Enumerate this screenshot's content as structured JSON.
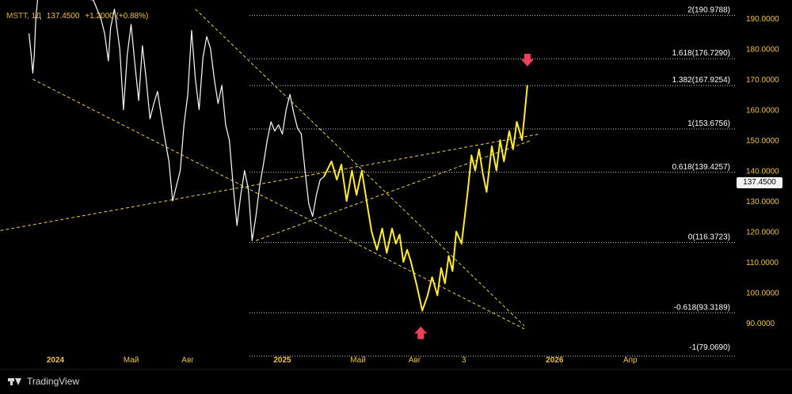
{
  "legend": {
    "symbol": "MSTT, 1Д",
    "price": "137.4500",
    "change": "+1.2000 (+0.88%)"
  },
  "price_badge": "137.4500",
  "brand": "TradingView",
  "colors": {
    "background": "#000000",
    "history_line": "#ffffff",
    "forecast_line": "#ffee33",
    "trendlines": "#e8d44a",
    "axis_text": "#f0c24b",
    "arrows": "#f0405a"
  },
  "chart_data": {
    "type": "line",
    "ylim": [
      76,
      196
    ],
    "y_ticks": [
      90,
      100,
      110,
      120,
      130,
      140,
      150,
      160,
      170,
      180,
      190
    ],
    "y_tick_labels": [
      "90.0000",
      "100.0000",
      "110.0000",
      "120.0000",
      "130.0000",
      "140.0000",
      "150.0000",
      "160.0000",
      "170.0000",
      "180.0000",
      "190.0000"
    ],
    "x_ticks": [
      {
        "label": "2024",
        "major": true,
        "t": 0.0
      },
      {
        "label": "Май",
        "t": 1.0
      },
      {
        "label": "Авг",
        "t": 1.75
      },
      {
        "label": "2025",
        "major": true,
        "t": 3.0
      },
      {
        "label": "Май",
        "t": 4.0
      },
      {
        "label": "Авг",
        "t": 4.75
      },
      {
        "label": "3",
        "t": 5.4
      },
      {
        "label": "2026",
        "major": true,
        "t": 6.6
      },
      {
        "label": "Апр",
        "t": 7.6
      }
    ],
    "fib_levels": [
      {
        "label": "2(190.9788)",
        "value": 190.9788
      },
      {
        "label": "1.618(176.7290)",
        "value": 176.729
      },
      {
        "label": "1.382(167.9254)",
        "value": 167.9254
      },
      {
        "label": "1(153.6756)",
        "value": 153.6756
      },
      {
        "label": "0.618(139.4257)",
        "value": 139.4257
      },
      {
        "label": "0(116.3723)",
        "value": 116.3723
      },
      {
        "label": "-0.618(93.3189)",
        "value": 93.3189
      },
      {
        "label": "-1(79.0690)",
        "value": 79.069
      }
    ],
    "series": [
      {
        "style": "history",
        "points": [
          [
            -0.35,
            185
          ],
          [
            -0.32,
            178
          ],
          [
            -0.3,
            172
          ],
          [
            -0.28,
            178
          ],
          [
            -0.26,
            190
          ],
          [
            -0.22,
            200
          ],
          [
            -0.1,
            198
          ],
          [
            0.5,
            196
          ],
          [
            0.6,
            190
          ],
          [
            0.65,
            185
          ],
          [
            0.7,
            176
          ],
          [
            0.73,
            187
          ],
          [
            0.78,
            193
          ],
          [
            0.85,
            180
          ],
          [
            0.9,
            160
          ],
          [
            0.95,
            178
          ],
          [
            1.0,
            188
          ],
          [
            1.05,
            175
          ],
          [
            1.1,
            163
          ],
          [
            1.15,
            181
          ],
          [
            1.2,
            170
          ],
          [
            1.25,
            157
          ],
          [
            1.3,
            162
          ],
          [
            1.35,
            166
          ],
          [
            1.4,
            158
          ],
          [
            1.45,
            150
          ],
          [
            1.5,
            143
          ],
          [
            1.55,
            130
          ],
          [
            1.6,
            135
          ],
          [
            1.65,
            140
          ],
          [
            1.7,
            155
          ],
          [
            1.75,
            165
          ],
          [
            1.8,
            186
          ],
          [
            1.85,
            170
          ],
          [
            1.9,
            160
          ],
          [
            1.95,
            177
          ],
          [
            2.0,
            184
          ],
          [
            2.05,
            180
          ],
          [
            2.1,
            170
          ],
          [
            2.15,
            162
          ],
          [
            2.2,
            168
          ],
          [
            2.25,
            155
          ],
          [
            2.3,
            150
          ],
          [
            2.35,
            135
          ],
          [
            2.4,
            122
          ],
          [
            2.45,
            132
          ],
          [
            2.5,
            140
          ],
          [
            2.55,
            134
          ],
          [
            2.6,
            117
          ],
          [
            2.65,
            125
          ],
          [
            2.7,
            135
          ],
          [
            2.75,
            142
          ],
          [
            2.8,
            150
          ],
          [
            2.85,
            156
          ],
          [
            2.9,
            153
          ],
          [
            2.95,
            155
          ],
          [
            3.0,
            152
          ],
          [
            3.05,
            160
          ],
          [
            3.1,
            165
          ],
          [
            3.15,
            159
          ],
          [
            3.2,
            154
          ],
          [
            3.25,
            152
          ],
          [
            3.3,
            140
          ],
          [
            3.35,
            129
          ],
          [
            3.4,
            125
          ],
          [
            3.45,
            132
          ],
          [
            3.5,
            137
          ],
          [
            3.55,
            138
          ]
        ]
      },
      {
        "style": "forecast",
        "points": [
          [
            3.55,
            138
          ],
          [
            3.65,
            143
          ],
          [
            3.72,
            137
          ],
          [
            3.78,
            142
          ],
          [
            3.85,
            130
          ],
          [
            3.92,
            140
          ],
          [
            3.98,
            132
          ],
          [
            4.05,
            140
          ],
          [
            4.12,
            129
          ],
          [
            4.18,
            120
          ],
          [
            4.25,
            114
          ],
          [
            4.32,
            121
          ],
          [
            4.38,
            113
          ],
          [
            4.45,
            121
          ],
          [
            4.5,
            116
          ],
          [
            4.55,
            119
          ],
          [
            4.6,
            110
          ],
          [
            4.65,
            114
          ],
          [
            4.7,
            110
          ],
          [
            4.78,
            102
          ],
          [
            4.85,
            94
          ],
          [
            4.92,
            99
          ],
          [
            4.98,
            105
          ],
          [
            5.05,
            99
          ],
          [
            5.1,
            108
          ],
          [
            5.15,
            103
          ],
          [
            5.2,
            112
          ],
          [
            5.25,
            107
          ],
          [
            5.3,
            120
          ],
          [
            5.37,
            116
          ],
          [
            5.45,
            133
          ],
          [
            5.5,
            145
          ],
          [
            5.55,
            140
          ],
          [
            5.6,
            147
          ],
          [
            5.65,
            139
          ],
          [
            5.7,
            133
          ],
          [
            5.77,
            148
          ],
          [
            5.83,
            140
          ],
          [
            5.88,
            150
          ],
          [
            5.93,
            143
          ],
          [
            6.0,
            153
          ],
          [
            6.05,
            147
          ],
          [
            6.1,
            156
          ],
          [
            6.17,
            150
          ],
          [
            6.24,
            168
          ]
        ]
      }
    ],
    "trendlines": [
      {
        "from": [
          -0.3,
          170
        ],
        "to": [
          6.2,
          88
        ]
      },
      {
        "from": [
          1.85,
          193
        ],
        "to": [
          6.2,
          89
        ]
      },
      {
        "from": [
          -0.8,
          120
        ],
        "to": [
          6.4,
          152
        ]
      },
      {
        "from": [
          2.65,
          117
        ],
        "to": [
          6.3,
          150
        ]
      }
    ],
    "arrows": [
      {
        "t": 6.24,
        "value": 176,
        "direction": "down"
      },
      {
        "t": 4.83,
        "value": 87,
        "direction": "up"
      }
    ]
  }
}
